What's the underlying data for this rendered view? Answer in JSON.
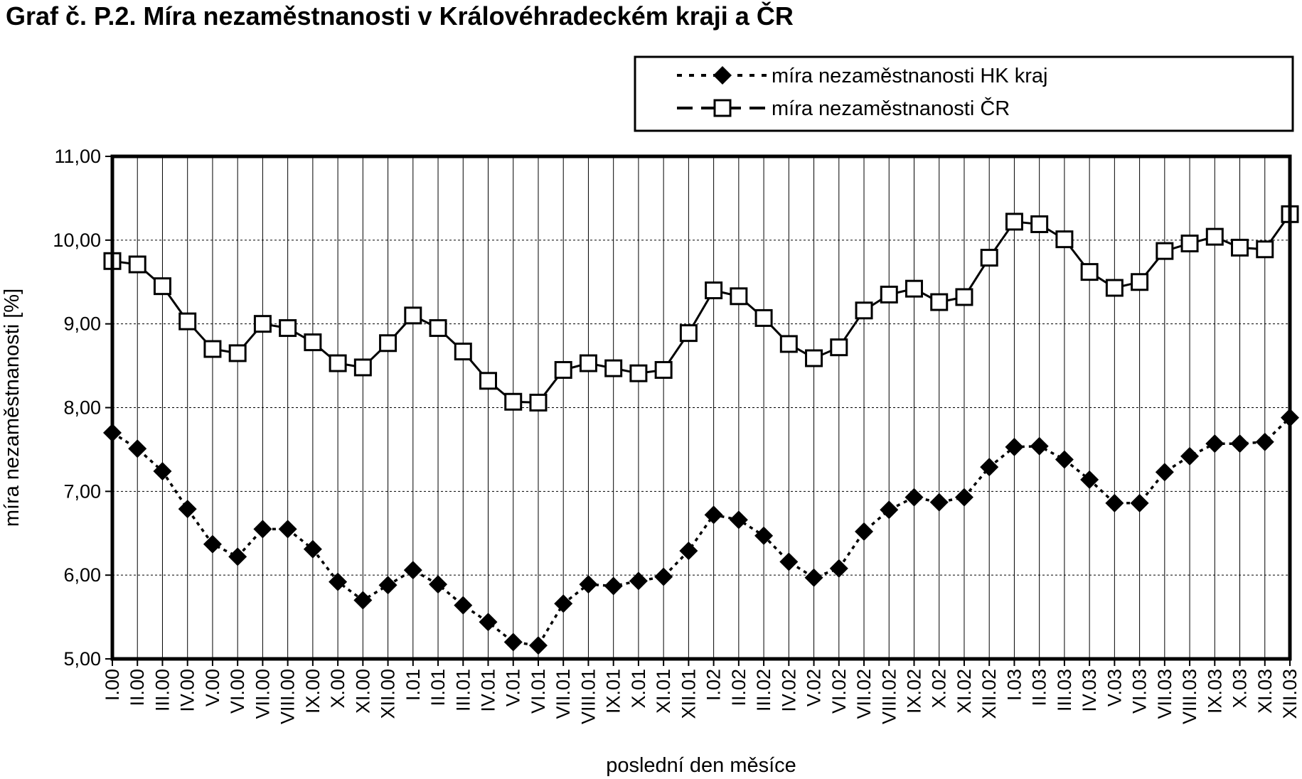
{
  "chart_data": {
    "type": "line",
    "title": "Graf č. P.2. Míra nezaměstnanosti v Královéhradeckém kraji a ČR",
    "xlabel": "poslední den měsíce",
    "ylabel": "míra nezaměstnanosti [%]",
    "ylim": [
      5,
      11
    ],
    "yticks": [
      "11,00",
      "10,00",
      "9,00",
      "8,00",
      "7,00",
      "6,00",
      "5,00"
    ],
    "grid": true,
    "legend_position": "top-right",
    "categories": [
      "I.00",
      "II.00",
      "III.00",
      "IV.00",
      "V.00",
      "VI.00",
      "VII.00",
      "VIII.00",
      "IX.00",
      "X.00",
      "XI.00",
      "XII.00",
      "I.01",
      "II.01",
      "III.01",
      "IV.01",
      "V.01",
      "VI.01",
      "VII.01",
      "VIII.01",
      "IX.01",
      "X.01",
      "XI.01",
      "XII.01",
      "I.02",
      "II.02",
      "III.02",
      "IV.02",
      "V.02",
      "VI.02",
      "VII.02",
      "VIII.02",
      "IX.02",
      "X.02",
      "XI.02",
      "XII.02",
      "I.03",
      "II.03",
      "III.03",
      "IV.03",
      "V.03",
      "VI.03",
      "VII.03",
      "VIII.03",
      "IX.03",
      "X.03",
      "XI.03",
      "XII.03"
    ],
    "series": [
      {
        "name": "míra nezaměstnanosti HK kraj",
        "marker": "diamond",
        "line": "dotted",
        "color": "#000000",
        "values": [
          7.7,
          7.51,
          7.24,
          6.79,
          6.37,
          6.22,
          6.55,
          6.55,
          6.31,
          5.92,
          5.7,
          5.88,
          6.06,
          5.89,
          5.64,
          5.44,
          5.2,
          5.16,
          5.66,
          5.89,
          5.87,
          5.93,
          5.98,
          6.29,
          6.72,
          6.66,
          6.47,
          6.16,
          5.97,
          6.08,
          6.52,
          6.78,
          6.93,
          6.87,
          6.93,
          7.29,
          7.53,
          7.54,
          7.38,
          7.14,
          6.86,
          6.86,
          7.23,
          7.42,
          7.57,
          7.57,
          7.59,
          7.88
        ]
      },
      {
        "name": "míra nezaměstnanosti ČR",
        "marker": "square",
        "line": "dashed",
        "color": "#000000",
        "values": [
          9.75,
          9.71,
          9.45,
          9.03,
          8.7,
          8.65,
          9.0,
          8.95,
          8.78,
          8.53,
          8.48,
          8.77,
          9.1,
          8.95,
          8.67,
          8.32,
          8.07,
          8.06,
          8.45,
          8.53,
          8.47,
          8.41,
          8.45,
          8.89,
          9.4,
          9.33,
          9.07,
          8.76,
          8.59,
          8.72,
          9.16,
          9.35,
          9.42,
          9.26,
          9.32,
          9.79,
          10.22,
          10.19,
          10.01,
          9.62,
          9.43,
          9.5,
          9.87,
          9.96,
          10.04,
          9.91,
          9.89,
          10.31
        ]
      }
    ]
  }
}
